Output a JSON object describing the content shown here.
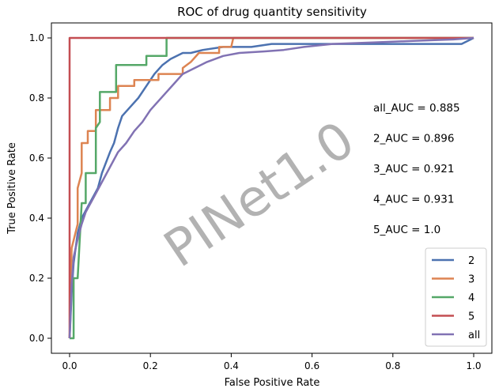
{
  "chart_data": {
    "type": "line",
    "title": "ROC of drug quantity sensitivity",
    "xlabel": "False Positive Rate",
    "ylabel": "True Positive Rate",
    "xlim": [
      -0.045,
      1.045
    ],
    "ylim": [
      -0.05,
      1.05
    ],
    "xticks": [
      0.0,
      0.2,
      0.4,
      0.6,
      0.8,
      1.0
    ],
    "xtick_labels": [
      "0.0",
      "0.2",
      "0.4",
      "0.6",
      "0.8",
      "1.0"
    ],
    "yticks": [
      0.0,
      0.2,
      0.4,
      0.6,
      0.8,
      1.0
    ],
    "ytick_labels": [
      "0.0",
      "0.2",
      "0.4",
      "0.6",
      "0.8",
      "1.0"
    ],
    "grid": false,
    "legend_position": "bottom-right",
    "annotations": [
      "all_AUC = 0.885",
      "2_AUC = 0.896",
      "3_AUC = 0.921",
      "4_AUC = 0.931",
      "5_AUC = 1.0"
    ],
    "watermark": "PINet1.0",
    "series": [
      {
        "name": "2",
        "color": "#4c72b0",
        "points": [
          [
            0,
            0
          ],
          [
            0.005,
            0.15
          ],
          [
            0.01,
            0.25
          ],
          [
            0.02,
            0.35
          ],
          [
            0.03,
            0.4
          ],
          [
            0.05,
            0.45
          ],
          [
            0.07,
            0.5
          ],
          [
            0.08,
            0.55
          ],
          [
            0.1,
            0.62
          ],
          [
            0.11,
            0.65
          ],
          [
            0.12,
            0.7
          ],
          [
            0.13,
            0.74
          ],
          [
            0.15,
            0.77
          ],
          [
            0.17,
            0.8
          ],
          [
            0.19,
            0.84
          ],
          [
            0.21,
            0.88
          ],
          [
            0.23,
            0.91
          ],
          [
            0.25,
            0.93
          ],
          [
            0.28,
            0.95
          ],
          [
            0.3,
            0.95
          ],
          [
            0.33,
            0.96
          ],
          [
            0.38,
            0.97
          ],
          [
            0.45,
            0.97
          ],
          [
            0.5,
            0.98
          ],
          [
            0.6,
            0.98
          ],
          [
            0.7,
            0.98
          ],
          [
            0.8,
            0.98
          ],
          [
            0.97,
            0.98
          ],
          [
            1.0,
            1.0
          ]
        ]
      },
      {
        "name": "3",
        "color": "#dd8452",
        "points": [
          [
            0,
            0
          ],
          [
            0.005,
            0.3
          ],
          [
            0.02,
            0.38
          ],
          [
            0.02,
            0.5
          ],
          [
            0.03,
            0.55
          ],
          [
            0.03,
            0.65
          ],
          [
            0.045,
            0.65
          ],
          [
            0.045,
            0.69
          ],
          [
            0.065,
            0.69
          ],
          [
            0.065,
            0.76
          ],
          [
            0.1,
            0.76
          ],
          [
            0.1,
            0.8
          ],
          [
            0.12,
            0.8
          ],
          [
            0.12,
            0.84
          ],
          [
            0.16,
            0.84
          ],
          [
            0.16,
            0.86
          ],
          [
            0.22,
            0.86
          ],
          [
            0.22,
            0.88
          ],
          [
            0.28,
            0.88
          ],
          [
            0.28,
            0.9
          ],
          [
            0.3,
            0.92
          ],
          [
            0.32,
            0.95
          ],
          [
            0.37,
            0.95
          ],
          [
            0.37,
            0.97
          ],
          [
            0.4,
            0.97
          ],
          [
            0.405,
            1.0
          ],
          [
            1.0,
            1.0
          ]
        ]
      },
      {
        "name": "4",
        "color": "#55a868",
        "points": [
          [
            0,
            0
          ],
          [
            0.01,
            0
          ],
          [
            0.01,
            0.2
          ],
          [
            0.02,
            0.2
          ],
          [
            0.03,
            0.45
          ],
          [
            0.04,
            0.45
          ],
          [
            0.04,
            0.55
          ],
          [
            0.065,
            0.55
          ],
          [
            0.065,
            0.7
          ],
          [
            0.075,
            0.72
          ],
          [
            0.075,
            0.82
          ],
          [
            0.115,
            0.82
          ],
          [
            0.115,
            0.91
          ],
          [
            0.19,
            0.91
          ],
          [
            0.19,
            0.94
          ],
          [
            0.24,
            0.94
          ],
          [
            0.24,
            1.0
          ],
          [
            1.0,
            1.0
          ]
        ]
      },
      {
        "name": "5",
        "color": "#c44e52",
        "points": [
          [
            0,
            0
          ],
          [
            0,
            1.0
          ],
          [
            1.0,
            1.0
          ]
        ]
      },
      {
        "name": "all",
        "color": "#8172b3",
        "points": [
          [
            0,
            0
          ],
          [
            0.005,
            0.18
          ],
          [
            0.01,
            0.27
          ],
          [
            0.02,
            0.33
          ],
          [
            0.03,
            0.38
          ],
          [
            0.04,
            0.42
          ],
          [
            0.06,
            0.47
          ],
          [
            0.08,
            0.52
          ],
          [
            0.1,
            0.57
          ],
          [
            0.12,
            0.62
          ],
          [
            0.14,
            0.65
          ],
          [
            0.16,
            0.69
          ],
          [
            0.18,
            0.72
          ],
          [
            0.2,
            0.76
          ],
          [
            0.22,
            0.79
          ],
          [
            0.24,
            0.82
          ],
          [
            0.26,
            0.85
          ],
          [
            0.28,
            0.88
          ],
          [
            0.31,
            0.9
          ],
          [
            0.34,
            0.92
          ],
          [
            0.38,
            0.94
          ],
          [
            0.42,
            0.95
          ],
          [
            0.48,
            0.955
          ],
          [
            0.53,
            0.96
          ],
          [
            0.58,
            0.97
          ],
          [
            0.65,
            0.98
          ],
          [
            0.75,
            0.985
          ],
          [
            0.85,
            0.99
          ],
          [
            0.95,
            0.995
          ],
          [
            1.0,
            1.0
          ]
        ]
      }
    ]
  }
}
